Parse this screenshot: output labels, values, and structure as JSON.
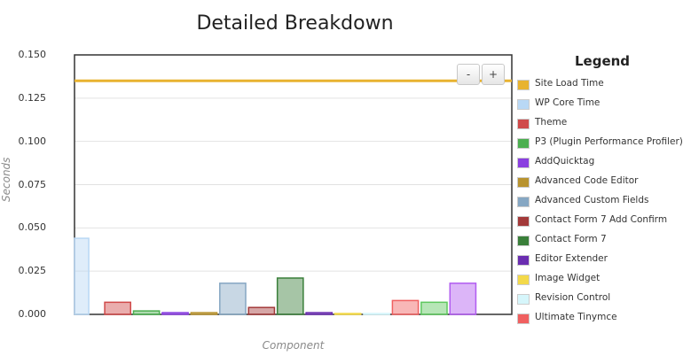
{
  "chart_data": {
    "type": "bar",
    "title": "Detailed Breakdown",
    "xlabel": "Component",
    "ylabel": "Seconds",
    "ylim": [
      0,
      0.15
    ],
    "yticks": [
      "0.000",
      "0.025",
      "0.050",
      "0.075",
      "0.100",
      "0.125",
      "0.150"
    ],
    "ytick_values": [
      0,
      0.025,
      0.05,
      0.075,
      0.1,
      0.125,
      0.15
    ],
    "grid": true,
    "legend_position": "right",
    "reference_line": {
      "name": "Site Load Time",
      "value": 0.135,
      "color": "#e8b330"
    },
    "series": [
      {
        "name": "WP Core Time",
        "value": 0.044,
        "color": "#b9d8f5"
      },
      {
        "name": "Theme",
        "value": 0.007,
        "color": "#d04a4a"
      },
      {
        "name": "P3 (Plugin Performance Profiler)",
        "value": 0.002,
        "color": "#4caf50"
      },
      {
        "name": "AddQuicktag",
        "value": 0.001,
        "color": "#8a3fe0"
      },
      {
        "name": "Advanced Code Editor",
        "value": 0.001,
        "color": "#b8932f"
      },
      {
        "name": "Advanced Custom Fields",
        "value": 0.018,
        "color": "#86a7c3"
      },
      {
        "name": "Contact Form 7 Add Confirm",
        "value": 0.004,
        "color": "#a33a3a"
      },
      {
        "name": "Contact Form 7",
        "value": 0.021,
        "color": "#3a7f3a"
      },
      {
        "name": "Editor Extender",
        "value": 0.001,
        "color": "#6a2db0"
      },
      {
        "name": "Image Widget",
        "value": 0.0005,
        "color": "#f3d94a"
      },
      {
        "name": "Revision Control",
        "value": 0.0005,
        "color": "#d6f6fb"
      },
      {
        "name": "Ultimate Tinymce",
        "value": 0.008,
        "color": "#f06060"
      },
      {
        "name": "",
        "value": 0.007,
        "color": "#5fc85f"
      },
      {
        "name": "",
        "value": 0.018,
        "color": "#b15cf0"
      }
    ]
  },
  "legend": {
    "title": "Legend",
    "items": [
      {
        "label": "Site Load Time",
        "color": "#e8b330"
      },
      {
        "label": "WP Core Time",
        "color": "#b9d8f5"
      },
      {
        "label": "Theme",
        "color": "#d04a4a"
      },
      {
        "label": "P3 (Plugin Performance Profiler)",
        "color": "#4caf50"
      },
      {
        "label": "AddQuicktag",
        "color": "#8a3fe0"
      },
      {
        "label": "Advanced Code Editor",
        "color": "#b8932f"
      },
      {
        "label": "Advanced Custom Fields",
        "color": "#86a7c3"
      },
      {
        "label": "Contact Form 7 Add Confirm",
        "color": "#a33a3a"
      },
      {
        "label": "Contact Form 7",
        "color": "#3a7f3a"
      },
      {
        "label": "Editor Extender",
        "color": "#6a2db0"
      },
      {
        "label": "Image Widget",
        "color": "#f3d94a"
      },
      {
        "label": "Revision Control",
        "color": "#d6f6fb"
      },
      {
        "label": "Ultimate Tinymce",
        "color": "#f06060"
      }
    ]
  },
  "controls": {
    "zoom_out_label": "-",
    "zoom_in_label": "+"
  }
}
